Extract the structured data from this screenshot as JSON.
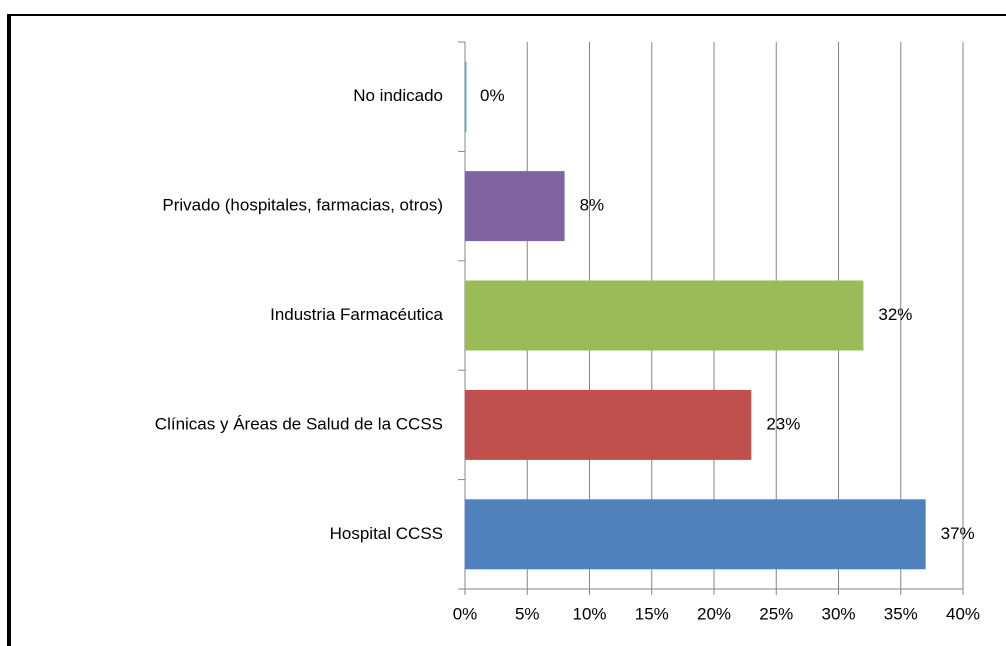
{
  "chart_data": {
    "type": "bar",
    "orientation": "horizontal",
    "categories": [
      "No indicado",
      "Privado (hospitales, farmacias, otros)",
      "Industria Farmacéutica",
      "Clínicas y Áreas de Salud de la CCSS",
      "Hospital CCSS"
    ],
    "values": [
      0,
      8,
      32,
      23,
      37
    ],
    "value_labels": [
      "0%",
      "8%",
      "32%",
      "23%",
      "37%"
    ],
    "colors": [
      "#4bacc6",
      "#8064a2",
      "#9bbb59",
      "#c0504d",
      "#4f81bd"
    ],
    "xlim": [
      0,
      40
    ],
    "xticks": [
      {
        "value": 0,
        "label": "0%"
      },
      {
        "value": 5,
        "label": "5%"
      },
      {
        "value": 10,
        "label": "10%"
      },
      {
        "value": 15,
        "label": "15%"
      },
      {
        "value": 20,
        "label": "20%"
      },
      {
        "value": 25,
        "label": "25%"
      },
      {
        "value": 30,
        "label": "30%"
      },
      {
        "value": 35,
        "label": "35%"
      },
      {
        "value": 40,
        "label": "40%"
      }
    ],
    "grid": true
  }
}
